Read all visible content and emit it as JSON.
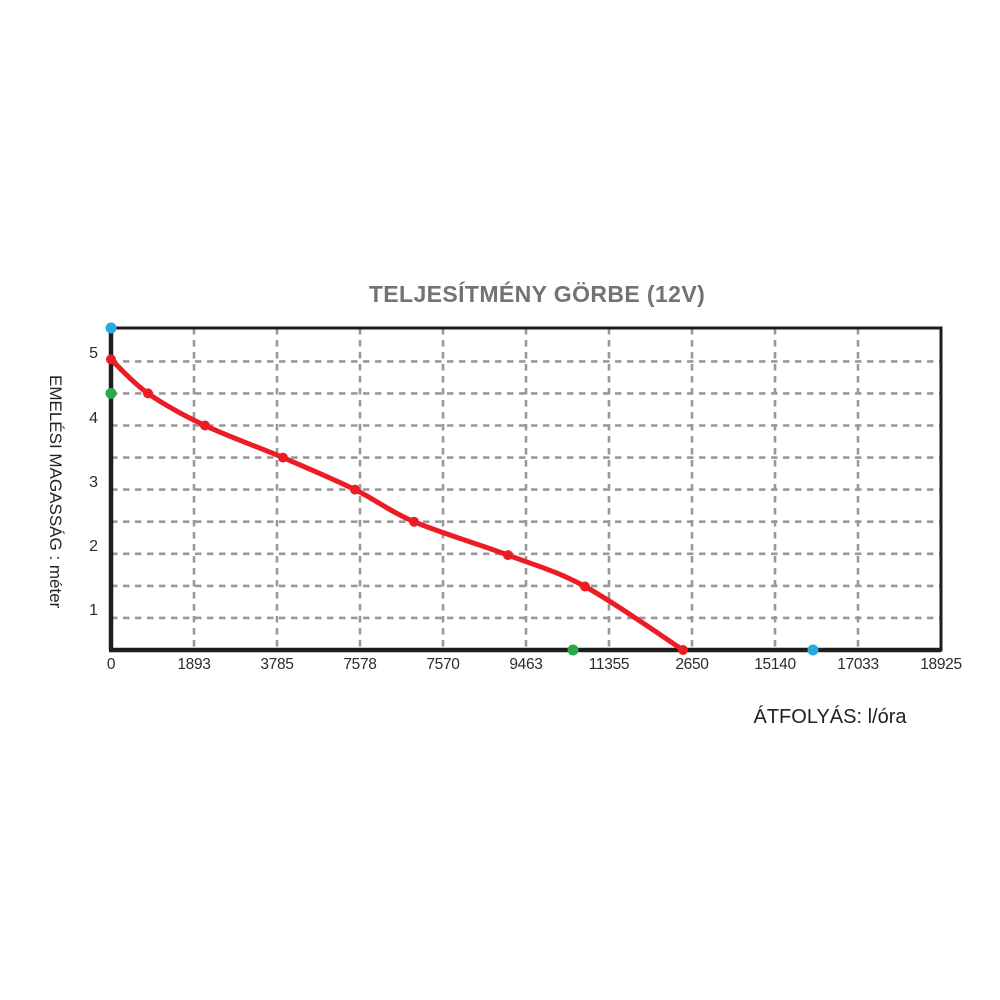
{
  "background": "#ffffff",
  "chart_data": {
    "type": "line",
    "title": "TELJESÍTMÉNY GÖRBE (12V)",
    "xlabel": "ÁTFOLYÁS: l/óra",
    "ylabel": "EMELÉSI MAGASSÁG : méter",
    "x_tick_labels": [
      "0",
      "1893",
      "3785",
      "7578",
      "7570",
      "9463",
      "11355",
      "2650",
      "15140",
      "17033",
      "18925"
    ],
    "y_tick_labels": [
      "5",
      "4",
      "3",
      "2",
      "1"
    ],
    "y_min": 0.5,
    "y_max": 5.52,
    "grid": {
      "on": true,
      "style": "dashed",
      "y_from": 1.0,
      "y_to": 5.0,
      "y_step": 0.5,
      "vertical_at_every_tick": true
    },
    "legend": "none",
    "series": [
      {
        "name": "performance-curve",
        "color": "#ed1c24",
        "points": [
          {
            "x_tick": 0.0,
            "y": 5.03
          },
          {
            "x_tick": 0.446,
            "y": 4.5
          },
          {
            "x_tick": 1.133,
            "y": 4.0
          },
          {
            "x_tick": 2.072,
            "y": 3.5
          },
          {
            "x_tick": 2.94,
            "y": 3.0
          },
          {
            "x_tick": 3.651,
            "y": 2.5
          },
          {
            "x_tick": 4.783,
            "y": 1.98
          },
          {
            "x_tick": 5.711,
            "y": 1.49
          },
          {
            "x_tick": 6.892,
            "y": 0.5
          }
        ]
      }
    ],
    "markers": [
      {
        "name": "cyan-marker-y-axis-top",
        "color": "#29abe2",
        "x_tick": 0,
        "y": 5.52
      },
      {
        "name": "green-marker-y-axis",
        "color": "#2aa84d",
        "x_tick": 0,
        "y": 4.5
      },
      {
        "name": "green-marker-x-axis",
        "color": "#2aa84d",
        "x_tick": 5.566,
        "y": 0.5
      },
      {
        "name": "cyan-marker-x-axis",
        "color": "#29abe2",
        "x_tick": 8.458,
        "y": 0.5
      }
    ],
    "colors": {
      "axis": "#1d1d1d",
      "gridline": "#999999",
      "tick_text": "#2b2b2b",
      "title_text": "#737373",
      "curve": "#ed1c24",
      "marker_green": "#2aa84d",
      "marker_cyan": "#29abe2"
    }
  }
}
